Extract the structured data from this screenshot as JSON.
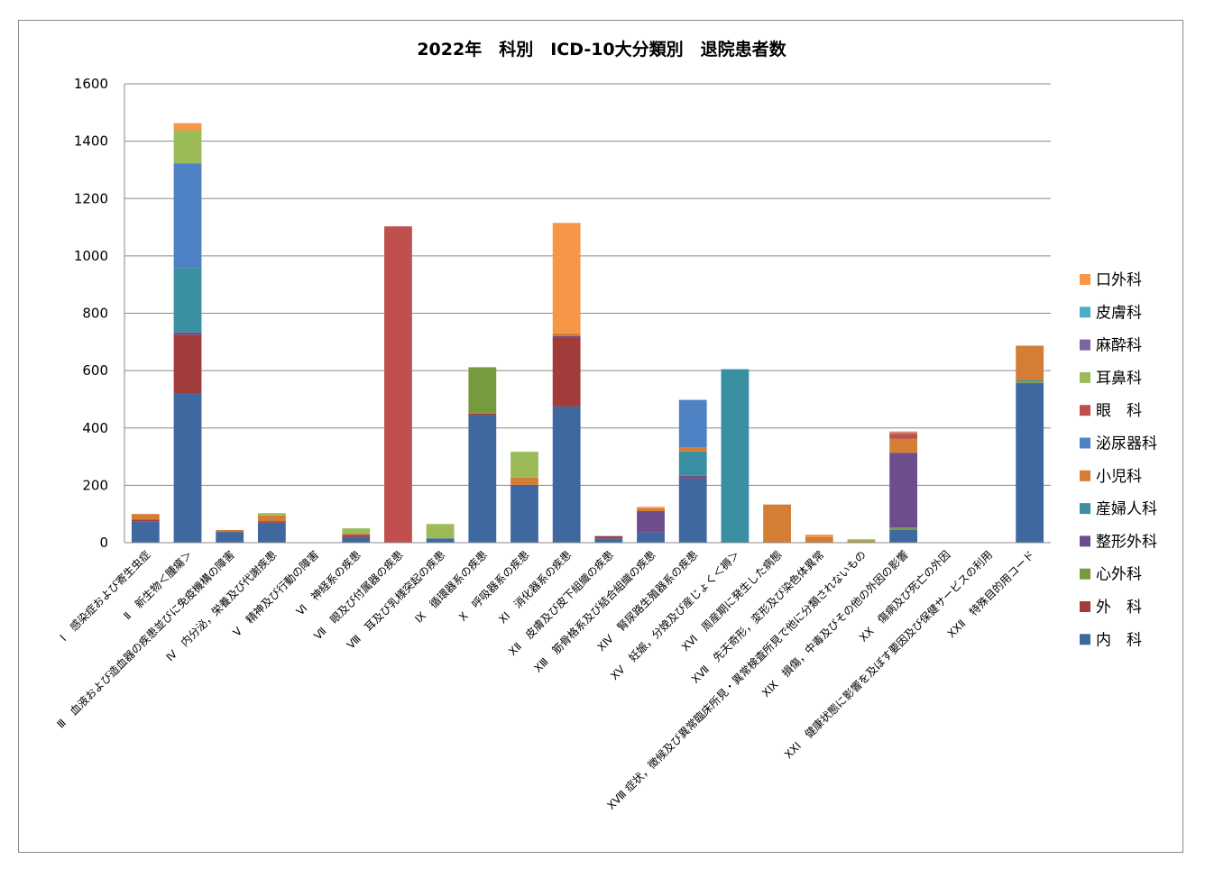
{
  "chart_data": {
    "type": "bar",
    "stacked": true,
    "title": "2022年　科別　ICD-10大分類別　退院患者数",
    "xlabel": "",
    "ylabel": "",
    "ylim": [
      0,
      1600
    ],
    "yticks": [
      0,
      200,
      400,
      600,
      800,
      1000,
      1200,
      1400,
      1600
    ],
    "grid": true,
    "legend_position": "right",
    "categories": [
      "Ⅰ　感染症および寄生虫症",
      "Ⅱ　新生物＜腫瘍＞",
      "Ⅲ　血液および造血器の疾患並びに免疫機構の障害",
      "Ⅳ　内分泌，栄養及び代謝疾患",
      "Ⅴ　精神及び行動の障害",
      "Ⅵ　神経系の疾患",
      "Ⅶ　眼及び付属器の疾患",
      "Ⅷ　耳及び乳様突起の疾患",
      "Ⅸ　循環器系の疾患",
      "Ⅹ　呼吸器系の疾患",
      "ⅩⅠ　消化器系の疾患",
      "ⅩⅡ　皮膚及び皮下組織の疾患",
      "ⅩⅢ　筋骨格系及び結合組織の疾患",
      "ⅩⅣ　腎尿路生殖器系の疾患",
      "ⅩⅤ　妊娠，分娩及び産じょく＜褥＞",
      "ⅩⅥ　周産期に発生した病態",
      "ⅩⅦ　先天奇形，変形及び染色体異常",
      "ⅩⅧ 症状，徴候及び異常臨床所見・異常検査所見で他に分類されないもの",
      "ⅩⅨ　損傷，中毒及びその他の外因の影響",
      "ⅩⅩ　傷病及び死亡の外因",
      "ⅩⅩⅠ　健康状態に影響を及ぼす要因及び保健サービスの利用",
      "ⅩⅩⅡ　特殊目的用コード"
    ],
    "series": [
      {
        "name": "内　科",
        "color": "#4068A0",
        "values": [
          75,
          520,
          37,
          70,
          1,
          20,
          0,
          15,
          445,
          200,
          475,
          15,
          35,
          225,
          0,
          0,
          0,
          0,
          45,
          0,
          0,
          555
        ]
      },
      {
        "name": "外　科",
        "color": "#A03C3A",
        "values": [
          5,
          205,
          2,
          5,
          0,
          5,
          0,
          0,
          5,
          2,
          240,
          8,
          0,
          3,
          0,
          0,
          0,
          0,
          0,
          0,
          0,
          2
        ]
      },
      {
        "name": "心外科",
        "color": "#779A3F",
        "values": [
          0,
          0,
          0,
          0,
          0,
          0,
          0,
          0,
          160,
          0,
          0,
          0,
          0,
          0,
          0,
          0,
          0,
          0,
          8,
          0,
          0,
          5
        ]
      },
      {
        "name": "整形外科",
        "color": "#6C4E8C",
        "values": [
          0,
          8,
          0,
          0,
          0,
          2,
          0,
          0,
          0,
          0,
          5,
          0,
          75,
          5,
          0,
          0,
          0,
          0,
          260,
          0,
          0,
          0
        ]
      },
      {
        "name": "産婦人科",
        "color": "#3A8FA3",
        "values": [
          0,
          225,
          0,
          0,
          0,
          0,
          0,
          0,
          0,
          0,
          0,
          0,
          0,
          85,
          605,
          0,
          0,
          0,
          0,
          0,
          0,
          5
        ]
      },
      {
        "name": "小児科",
        "color": "#D37D35",
        "values": [
          20,
          0,
          5,
          20,
          0,
          5,
          0,
          0,
          2,
          25,
          10,
          0,
          10,
          15,
          0,
          133,
          20,
          5,
          50,
          0,
          0,
          120
        ]
      },
      {
        "name": "泌尿器科",
        "color": "#4F82C4",
        "values": [
          0,
          365,
          0,
          0,
          0,
          0,
          0,
          0,
          0,
          0,
          0,
          0,
          0,
          165,
          0,
          0,
          0,
          0,
          0,
          0,
          0,
          0
        ]
      },
      {
        "name": "眼　科",
        "color": "#C0504D",
        "values": [
          0,
          0,
          0,
          0,
          0,
          0,
          1103,
          0,
          0,
          0,
          0,
          0,
          0,
          0,
          0,
          0,
          0,
          0,
          15,
          0,
          0,
          0
        ]
      },
      {
        "name": "耳鼻科",
        "color": "#9BBB59",
        "values": [
          0,
          115,
          0,
          8,
          0,
          18,
          0,
          50,
          0,
          90,
          0,
          0,
          0,
          0,
          0,
          0,
          0,
          7,
          0,
          0,
          0,
          0
        ]
      },
      {
        "name": "麻酔科",
        "color": "#8064A2",
        "values": [
          0,
          0,
          0,
          0,
          0,
          0,
          0,
          0,
          0,
          0,
          0,
          0,
          0,
          0,
          0,
          0,
          0,
          0,
          5,
          0,
          0,
          0
        ]
      },
      {
        "name": "皮膚科",
        "color": "#4BACC6",
        "values": [
          0,
          0,
          0,
          0,
          0,
          0,
          0,
          0,
          0,
          0,
          0,
          0,
          0,
          0,
          0,
          0,
          0,
          0,
          0,
          0,
          0,
          0
        ]
      },
      {
        "name": "口外科",
        "color": "#F79646",
        "values": [
          0,
          25,
          0,
          0,
          0,
          0,
          0,
          0,
          0,
          0,
          385,
          0,
          5,
          0,
          0,
          0,
          8,
          0,
          5,
          0,
          0,
          0
        ]
      }
    ]
  }
}
